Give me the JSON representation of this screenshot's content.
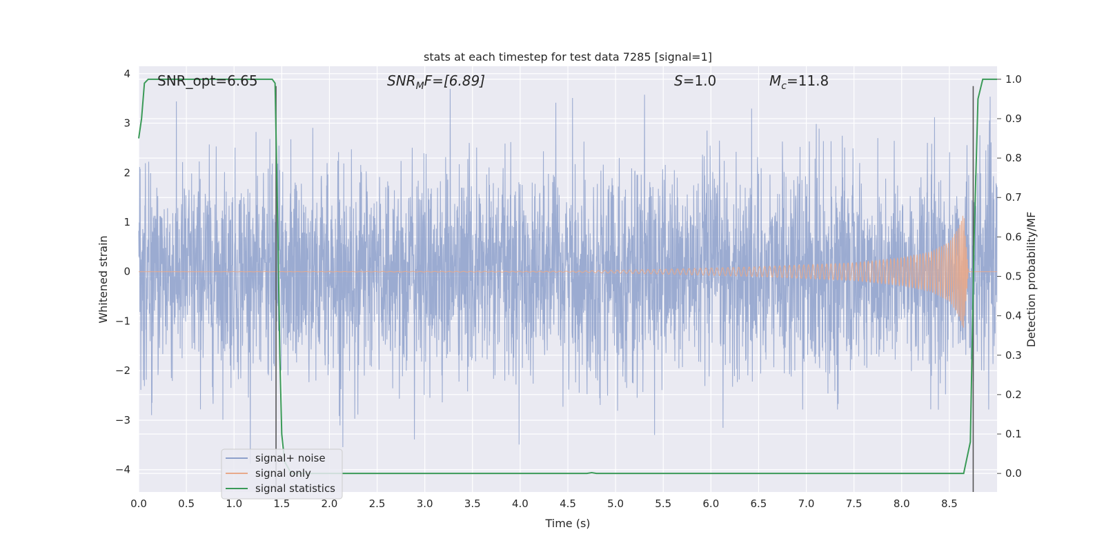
{
  "chart_data": {
    "type": "line",
    "title": "stats at each timestep for test data 7285 [signal=1]",
    "xlabel": "Time (s)",
    "ylabel": "Whitened strain",
    "y2label": "Detection probability/MF",
    "xlim": [
      0.0,
      9.0
    ],
    "ylim": [
      -4.45,
      4.15
    ],
    "y2lim": [
      -0.047,
      1.033
    ],
    "xticks": [
      "0.0",
      "0.5",
      "1.0",
      "1.5",
      "2.0",
      "2.5",
      "3.0",
      "3.5",
      "4.0",
      "4.5",
      "5.0",
      "5.5",
      "6.0",
      "6.5",
      "7.0",
      "7.5",
      "8.0",
      "8.5"
    ],
    "yticks": [
      "4",
      "3",
      "2",
      "1",
      "0",
      "−1",
      "−2",
      "−3",
      "−4"
    ],
    "y2ticks": [
      "1.0",
      "0.9",
      "0.8",
      "0.7",
      "0.6",
      "0.5",
      "0.4",
      "0.3",
      "0.2",
      "0.1",
      "0.0"
    ],
    "grid": true,
    "legend": "lower-left",
    "annotations": {
      "snr_opt": "SNR_opt=6.65",
      "snr_mf_sym": "SNR",
      "snr_mf_sub": "M",
      "snr_mf_rest": "F=[6.89]",
      "s_sym": "S",
      "s_rest": "=1.0",
      "mc_sym": "M",
      "mc_sub": "c",
      "mc_rest": "=11.8"
    },
    "series": [
      {
        "name": "signal+ noise",
        "color": "#8da0cb",
        "description_values": {
          "t_start": 0.0,
          "t_end": 9.0,
          "std": 1.0,
          "min": -4.0,
          "max": 3.75
        }
      },
      {
        "name": "signal only",
        "color": "#e8a98a",
        "x": [
          0.0,
          4.5,
          5.5,
          6.5,
          7.5,
          8.0,
          8.3,
          8.5,
          8.6,
          8.65,
          8.7
        ],
        "amplitude": [
          0.0,
          0.01,
          0.05,
          0.1,
          0.18,
          0.28,
          0.4,
          0.6,
          0.9,
          1.2,
          0.0
        ]
      },
      {
        "name": "signal statistics",
        "color": "#3a9a57",
        "x": [
          0.0,
          0.03,
          0.06,
          0.1,
          0.5,
          1.0,
          1.4,
          1.43,
          1.46,
          1.48,
          1.5,
          1.53,
          1.6,
          2.0,
          4.7,
          4.75,
          4.8,
          5.0,
          8.0,
          8.65,
          8.72,
          8.76,
          8.8,
          8.85,
          8.9,
          9.0
        ],
        "y": [
          0.85,
          0.9,
          0.99,
          1.0,
          1.0,
          1.0,
          1.0,
          0.99,
          0.6,
          0.3,
          0.1,
          0.03,
          0.0,
          0.0,
          0.0,
          0.002,
          0.0,
          0.0,
          0.0,
          0.0,
          0.08,
          0.6,
          0.95,
          1.0,
          1.0,
          1.0
        ]
      }
    ],
    "markers": [
      {
        "x": 1.44,
        "ymin": -4.45,
        "ymax": 3.75,
        "color": "#555555"
      },
      {
        "x": 8.75,
        "ymin": -4.45,
        "ymax": 3.75,
        "color": "#555555"
      }
    ]
  }
}
